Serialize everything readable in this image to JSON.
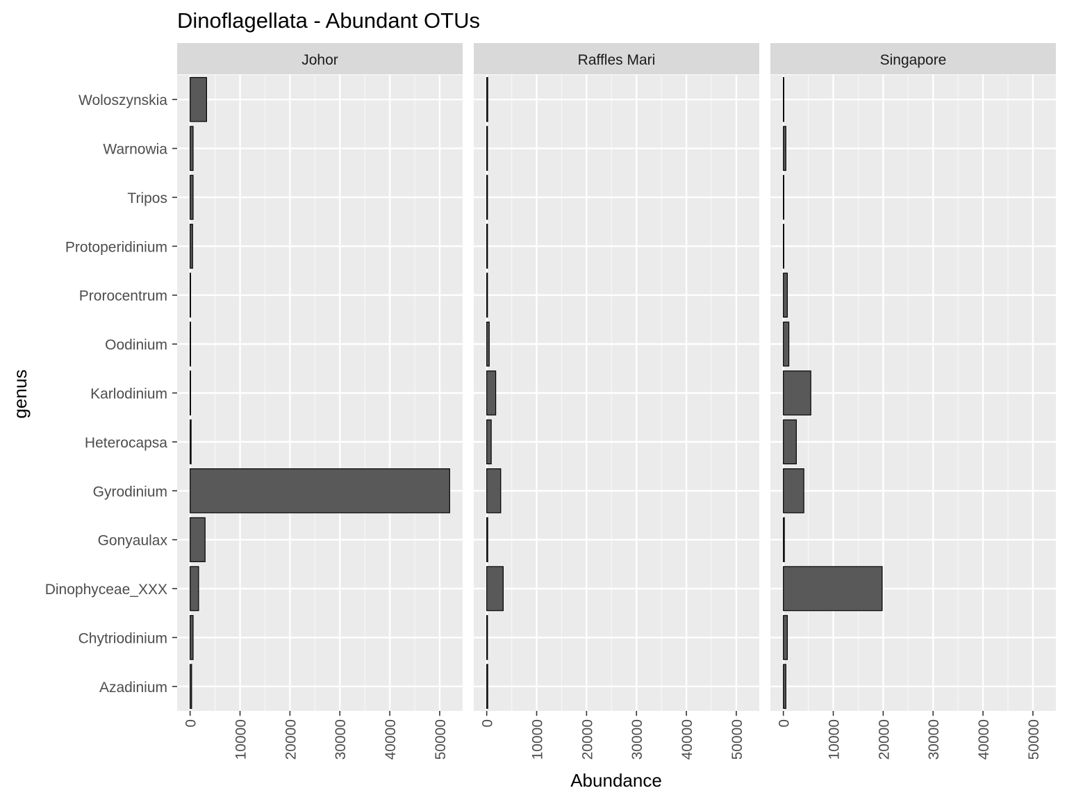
{
  "chart_data": {
    "type": "bar",
    "orientation": "horizontal",
    "title": "Dinoflagellata - Abundant OTUs",
    "xlabel": "Abundance",
    "ylabel": "genus",
    "xlim": [
      0,
      52000
    ],
    "x_ticks": [
      0,
      10000,
      20000,
      30000,
      40000,
      50000
    ],
    "x_tick_labels": [
      "0",
      "10000",
      "20000",
      "30000",
      "40000",
      "50000"
    ],
    "grid": true,
    "legend": "none",
    "bar_color": "#595959",
    "categories": [
      "Woloszynskia",
      "Warnowia",
      "Tripos",
      "Protoperidinium",
      "Prorocentrum",
      "Oodinium",
      "Karlodinium",
      "Heterocapsa",
      "Gyrodinium",
      "Gonyaulax",
      "Dinophyceae_XXX",
      "Chytriodinium",
      "Azadinium"
    ],
    "facets": [
      {
        "name": "Johor",
        "values": [
          3300,
          600,
          600,
          500,
          100,
          100,
          100,
          200,
          52000,
          3000,
          1700,
          600,
          300
        ]
      },
      {
        "name": "Raffles Mari",
        "values": [
          200,
          150,
          150,
          150,
          150,
          500,
          1800,
          900,
          2800,
          200,
          3300,
          150,
          200
        ]
      },
      {
        "name": "Singapore",
        "values": [
          100,
          500,
          100,
          100,
          800,
          1100,
          5500,
          2600,
          4100,
          200,
          19800,
          800,
          500
        ]
      }
    ]
  }
}
